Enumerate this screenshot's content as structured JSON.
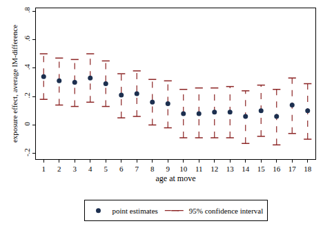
{
  "chart_data": {
    "type": "scatter",
    "x_label": "age at move",
    "y_label": "exposure effect, average IM-difference",
    "x": [
      1,
      2,
      3,
      4,
      5,
      6,
      7,
      8,
      9,
      10,
      11,
      12,
      13,
      14,
      15,
      16,
      17,
      18
    ],
    "series": [
      {
        "name": "point estimates",
        "type": "scatter",
        "marker": "circle",
        "color": "#1c2f4f",
        "values": [
          0.34,
          0.31,
          0.3,
          0.33,
          0.29,
          0.21,
          0.22,
          0.16,
          0.15,
          0.08,
          0.08,
          0.09,
          0.09,
          0.06,
          0.1,
          0.06,
          0.14,
          0.1
        ]
      },
      {
        "name": "95% confidence interval",
        "type": "interval",
        "line_style": "dash",
        "color": "#8b2323",
        "lower": [
          0.18,
          0.14,
          0.13,
          0.16,
          0.13,
          0.05,
          0.06,
          0.0,
          -0.02,
          -0.09,
          -0.09,
          -0.09,
          -0.09,
          -0.13,
          -0.08,
          -0.14,
          -0.06,
          -0.1
        ],
        "upper": [
          0.5,
          0.47,
          0.46,
          0.5,
          0.45,
          0.36,
          0.38,
          0.32,
          0.31,
          0.25,
          0.26,
          0.26,
          0.27,
          0.24,
          0.28,
          0.25,
          0.33,
          0.29
        ]
      }
    ],
    "xlim": [
      0.5,
      18.5
    ],
    "xticks": [
      1,
      2,
      3,
      4,
      5,
      6,
      7,
      8,
      9,
      10,
      11,
      12,
      13,
      14,
      15,
      16,
      17,
      18
    ],
    "ylim": [
      -0.24,
      0.82
    ],
    "yticks": [
      {
        "value": -0.2,
        "label": "-.2"
      },
      0,
      {
        "value": 0.2,
        "label": ".2"
      },
      {
        "value": 0.4,
        "label": ".4"
      },
      {
        "value": 0.6,
        "label": ".6"
      },
      {
        "value": 0.8,
        "label": ".8"
      }
    ],
    "grid": false,
    "legend": "bottom"
  }
}
